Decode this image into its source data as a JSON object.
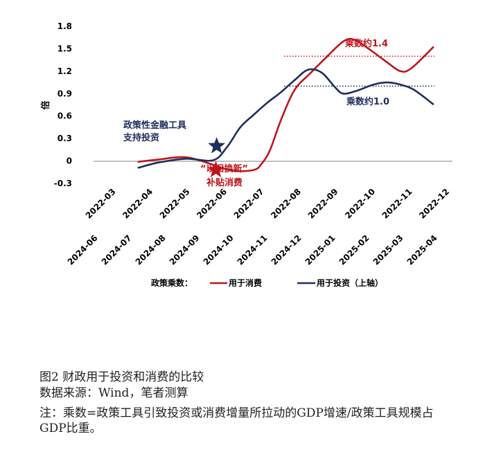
{
  "colors": {
    "consumption": "#c0141e",
    "investment": "#1f2d5c",
    "axis": "#808080"
  },
  "chart_data": {
    "type": "line",
    "ylabel": "倍",
    "yticks": [
      "1.8",
      "1.5",
      "1.2",
      "0.9",
      "0.6",
      "0.3",
      "0",
      "-0.3"
    ],
    "ylim": [
      -0.3,
      1.8
    ],
    "x_bottom_axis": [
      "2022-03",
      "2022-04",
      "2022-05",
      "2022-06",
      "2022-07",
      "2022-08",
      "2022-09",
      "2022-10",
      "2022-11",
      "2022-12"
    ],
    "x_top_axis": [
      "2024-06",
      "2024-07",
      "2024-08",
      "2024-09",
      "2024-10",
      "2024-11",
      "2024-12",
      "2025-01",
      "2025-02",
      "2025-03",
      "2025-04"
    ],
    "series": [
      {
        "name": "用于消费",
        "color": "#c0141e",
        "axis": "bottom",
        "x": [
          2.75,
          3.5,
          4.5,
          5.5,
          6.2,
          7.0,
          7.3,
          7.6,
          8.0,
          8.5,
          9.1,
          9.65,
          10.3,
          10.7,
          11.3,
          11.9,
          12.4,
          12.8,
          13.6
        ],
        "values": [
          -0.01,
          0.02,
          0.05,
          -0.05,
          -0.13,
          -0.12,
          -0.03,
          0.15,
          0.55,
          0.95,
          1.18,
          1.38,
          1.6,
          1.62,
          1.48,
          1.32,
          1.2,
          1.24,
          1.52
        ]
      },
      {
        "name": "用于投资（上轴）",
        "color": "#1f2d5c",
        "axis": "top",
        "x": [
          2.75,
          3.5,
          4.5,
          5.5,
          6.0,
          6.5,
          7.0,
          7.5,
          8.0,
          8.5,
          9.0,
          9.5,
          10.0,
          10.3,
          10.8,
          11.4,
          11.9,
          12.4,
          12.9,
          13.6
        ],
        "values": [
          -0.09,
          -0.02,
          0.03,
          0.01,
          0.18,
          0.45,
          0.62,
          0.78,
          0.92,
          1.08,
          1.22,
          1.18,
          0.98,
          0.9,
          0.94,
          1.02,
          1.05,
          1.02,
          0.95,
          0.76
        ]
      }
    ],
    "reference_lines": [
      {
        "label": "乘数约1.4",
        "value": 1.4,
        "color": "#c0141e"
      },
      {
        "label": "乘数约1.0",
        "value": 1.0,
        "color": "#1f2d5c"
      }
    ],
    "annotations": [
      {
        "text": [
          "政策性金融工具",
          "支持投资"
        ],
        "color": "#1f2d5c",
        "marker": "star",
        "x": 5.63,
        "value": 0.2
      },
      {
        "text": [
          "“以旧换新”",
          "补贴消费"
        ],
        "color": "#c0141e",
        "marker": "star",
        "x": 5.6,
        "value": -0.12
      }
    ],
    "legend": {
      "title": "政策乘数：",
      "position": "bottom",
      "items": [
        "用于消费",
        "用于投资（上轴）"
      ]
    }
  },
  "caption": {
    "title": "图2  财政用于投资和消费的比较",
    "source": "数据来源：Wind，笔者测算",
    "note": "注：乘数=政策工具引致投资或消费增量所拉动的GDP增速/政策工具规模占GDP比重。"
  }
}
